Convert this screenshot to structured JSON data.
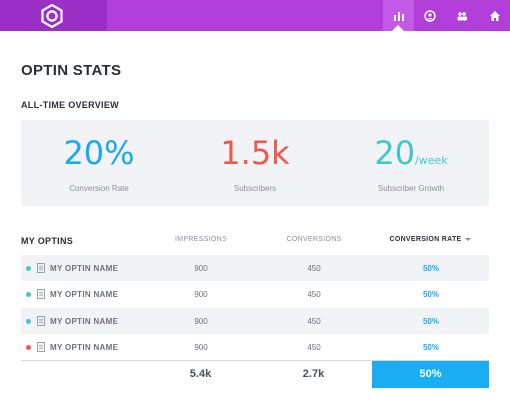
{
  "nav": {
    "icons": [
      "logo-icon",
      "stats-icon",
      "account-icon",
      "users-icon",
      "home-icon"
    ],
    "active": "stats"
  },
  "page": {
    "title": "OPTIN STATS"
  },
  "overview": {
    "title": "ALL-TIME OVERVIEW",
    "stats": [
      {
        "value": "20%",
        "unit": "",
        "label": "Conversion Rate",
        "color": "#1aa9f0"
      },
      {
        "value": "1.5k",
        "unit": "",
        "label": "Subscribers",
        "color": "#ee5a4a"
      },
      {
        "value": "20",
        "unit": "/week",
        "label": "Subscriber Growth",
        "color": "#3ec9c9"
      }
    ]
  },
  "optins": {
    "title": "MY OPTINS",
    "columns": {
      "impressions": "IMPRESSIONS",
      "conversions": "CONVERSIONS",
      "rate": "CONVERSION RATE"
    },
    "rows": [
      {
        "name": "MY OPTIN NAME",
        "impressions": "900",
        "conversions": "450",
        "rate": "50%",
        "status_color": "#3ec9c9"
      },
      {
        "name": "MY OPTIN NAME",
        "impressions": "900",
        "conversions": "450",
        "rate": "50%",
        "status_color": "#3ec9c9"
      },
      {
        "name": "MY OPTIN NAME",
        "impressions": "900",
        "conversions": "450",
        "rate": "50%",
        "status_color": "#3ec9c9"
      },
      {
        "name": "MY OPTIN NAME",
        "impressions": "900",
        "conversions": "450",
        "rate": "50%",
        "status_color": "#ee5a4a"
      }
    ],
    "totals": {
      "impressions": "5.4k",
      "conversions": "2.7k",
      "rate": "50%"
    }
  },
  "colors": {
    "brand": "#b13ed9",
    "brand_dark": "#9b2fc6",
    "accent": "#1aadf3"
  }
}
